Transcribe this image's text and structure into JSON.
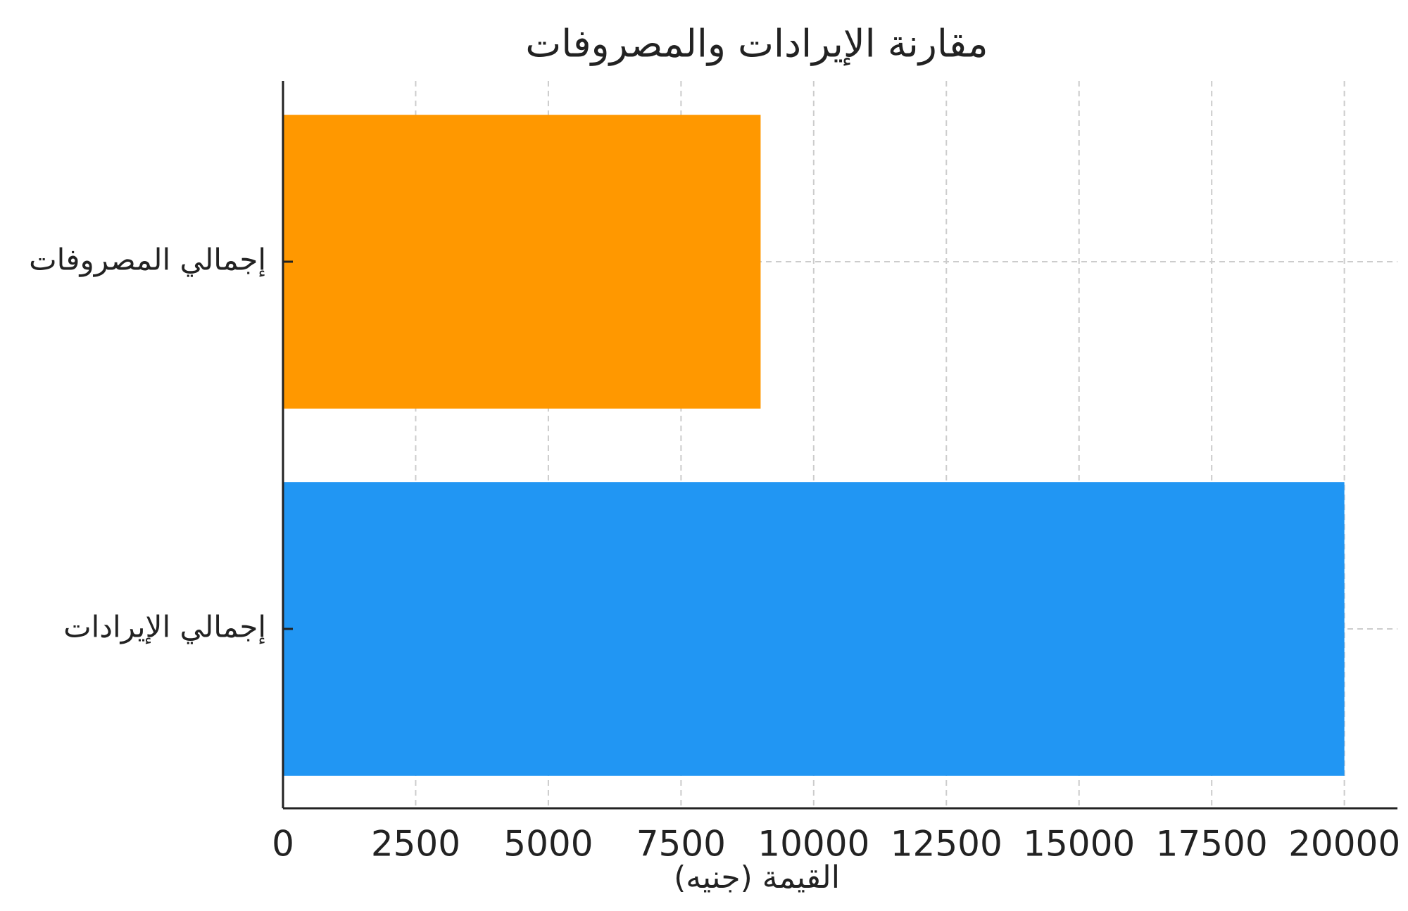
{
  "chart_data": {
    "type": "barh",
    "title": "مقارنة الإيرادات والمصروفات",
    "xlabel": "القيمة (جنيه)",
    "categories": [
      "إجمالي الإيرادات",
      "إجمالي المصروفات"
    ],
    "values": [
      20000,
      9000
    ],
    "colors": [
      "#2196F3",
      "#FF9800"
    ],
    "xlim": [
      0,
      21000
    ],
    "xticks": [
      0,
      2500,
      5000,
      7500,
      10000,
      12500,
      15000,
      17500,
      20000
    ],
    "grid": true
  }
}
